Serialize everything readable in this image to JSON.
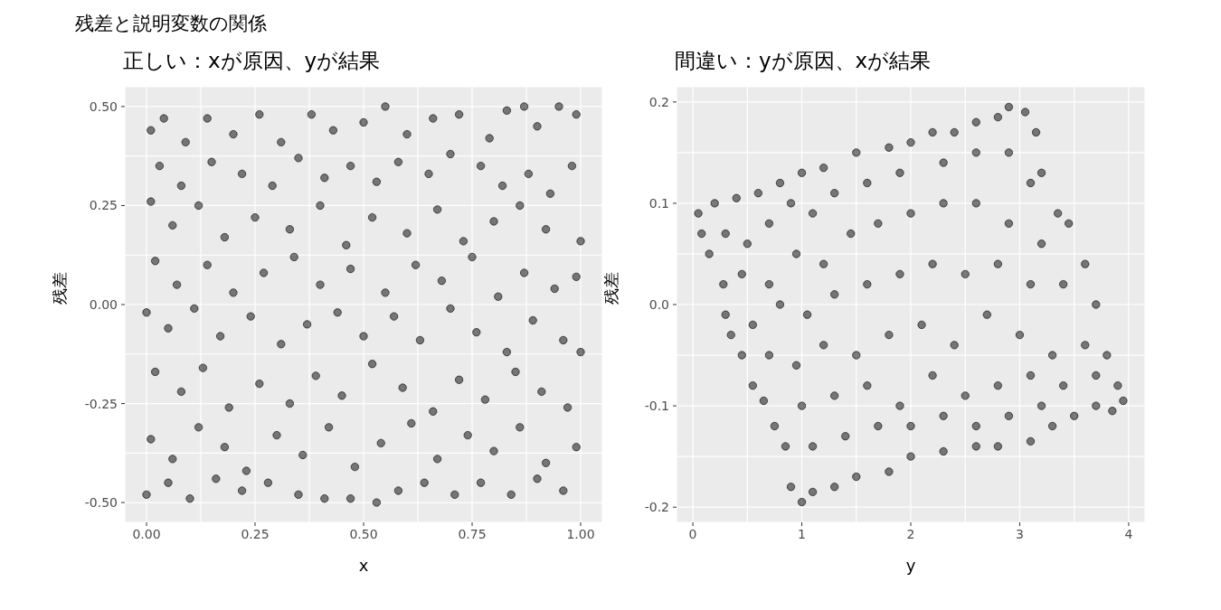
{
  "chart_data": [
    {
      "type": "scatter",
      "title": "残差と説明変数の関係",
      "subtitle": "正しい：xが原因、yが結果",
      "xlabel": "x",
      "ylabel": "残差",
      "marker": "circle",
      "grid": true,
      "xlim": [
        -0.05,
        1.05
      ],
      "ylim": [
        -0.55,
        0.55
      ],
      "xticks": [
        {
          "value": 0,
          "label": "0.00"
        },
        {
          "value": 0.125,
          "label": null
        },
        {
          "value": 0.25,
          "label": "0.25"
        },
        {
          "value": 0.375,
          "label": null
        },
        {
          "value": 0.5,
          "label": "0.50"
        },
        {
          "value": 0.625,
          "label": null
        },
        {
          "value": 0.75,
          "label": "0.75"
        },
        {
          "value": 0.875,
          "label": null
        },
        {
          "value": 1,
          "label": "1.00"
        }
      ],
      "yticks": [
        {
          "value": -0.5,
          "label": "-0.50"
        },
        {
          "value": -0.375,
          "label": null
        },
        {
          "value": -0.25,
          "label": "-0.25"
        },
        {
          "value": -0.125,
          "label": null
        },
        {
          "value": 0,
          "label": "0.00"
        },
        {
          "value": 0.125,
          "label": null
        },
        {
          "value": 0.25,
          "label": "0.25"
        },
        {
          "value": 0.375,
          "label": null
        },
        {
          "value": 0.5,
          "label": "0.50"
        }
      ],
      "series": [
        {
          "color": "#000000",
          "x": [
            0.01,
            0.04,
            0.09,
            0.14,
            0.2,
            0.26,
            0.31,
            0.38,
            0.43,
            0.5,
            0.55,
            0.6,
            0.66,
            0.72,
            0.79,
            0.83,
            0.87,
            0.9,
            0.95,
            0.99,
            0.03,
            0.08,
            0.15,
            0.22,
            0.29,
            0.35,
            0.41,
            0.47,
            0.53,
            0.58,
            0.65,
            0.7,
            0.77,
            0.82,
            0.88,
            0.93,
            0.98,
            0.01,
            0.06,
            0.12,
            0.18,
            0.25,
            0.33,
            0.4,
            0.46,
            0.52,
            0.6,
            0.67,
            0.73,
            0.8,
            0.86,
            0.92,
            1.0,
            0.02,
            0.07,
            0.14,
            0.2,
            0.27,
            0.34,
            0.4,
            0.47,
            0.55,
            0.62,
            0.68,
            0.75,
            0.81,
            0.87,
            0.94,
            0.99,
            0.0,
            0.05,
            0.11,
            0.17,
            0.24,
            0.31,
            0.37,
            0.44,
            0.5,
            0.57,
            0.63,
            0.7,
            0.76,
            0.83,
            0.89,
            0.96,
            1.0,
            0.02,
            0.08,
            0.13,
            0.19,
            0.26,
            0.33,
            0.39,
            0.45,
            0.52,
            0.59,
            0.66,
            0.72,
            0.78,
            0.85,
            0.91,
            0.97,
            0.01,
            0.06,
            0.12,
            0.18,
            0.23,
            0.3,
            0.36,
            0.42,
            0.48,
            0.54,
            0.61,
            0.67,
            0.74,
            0.8,
            0.86,
            0.92,
            0.99,
            0.0,
            0.05,
            0.1,
            0.16,
            0.22,
            0.28,
            0.35,
            0.41,
            0.47,
            0.53,
            0.58,
            0.64,
            0.71,
            0.77,
            0.84,
            0.9,
            0.96
          ],
          "values": [
            0.44,
            0.47,
            0.41,
            0.47,
            0.43,
            0.48,
            0.41,
            0.48,
            0.44,
            0.46,
            0.5,
            0.43,
            0.47,
            0.48,
            0.42,
            0.49,
            0.5,
            0.45,
            0.5,
            0.48,
            0.35,
            0.3,
            0.36,
            0.33,
            0.3,
            0.37,
            0.32,
            0.35,
            0.31,
            0.36,
            0.33,
            0.38,
            0.35,
            0.3,
            0.33,
            0.28,
            0.35,
            0.26,
            0.2,
            0.25,
            0.17,
            0.22,
            0.19,
            0.25,
            0.15,
            0.22,
            0.18,
            0.24,
            0.16,
            0.21,
            0.25,
            0.19,
            0.16,
            0.11,
            0.05,
            0.1,
            0.03,
            0.08,
            0.12,
            0.05,
            0.09,
            0.03,
            0.1,
            0.06,
            0.12,
            0.02,
            0.08,
            0.04,
            0.07,
            -0.02,
            -0.06,
            -0.01,
            -0.08,
            -0.03,
            -0.1,
            -0.05,
            -0.02,
            -0.08,
            -0.03,
            -0.09,
            -0.01,
            -0.07,
            -0.12,
            -0.04,
            -0.09,
            -0.12,
            -0.17,
            -0.22,
            -0.16,
            -0.26,
            -0.2,
            -0.25,
            -0.18,
            -0.23,
            -0.15,
            -0.21,
            -0.27,
            -0.19,
            -0.24,
            -0.17,
            -0.22,
            -0.26,
            -0.34,
            -0.39,
            -0.31,
            -0.36,
            -0.42,
            -0.33,
            -0.38,
            -0.31,
            -0.41,
            -0.35,
            -0.3,
            -0.39,
            -0.33,
            -0.37,
            -0.31,
            -0.4,
            -0.36,
            -0.48,
            -0.45,
            -0.49,
            -0.44,
            -0.47,
            -0.45,
            -0.48,
            -0.49,
            -0.49,
            -0.5,
            -0.47,
            -0.45,
            -0.48,
            -0.45,
            -0.48,
            -0.44,
            -0.47
          ]
        }
      ]
    },
    {
      "type": "scatter",
      "subtitle": "間違い：yが原因、xが結果",
      "xlabel": "y",
      "ylabel": "残差",
      "marker": "circle",
      "grid": true,
      "xlim": [
        -0.15,
        4.15
      ],
      "ylim": [
        -0.215,
        0.215
      ],
      "xticks": [
        0,
        {
          "value": 0.5,
          "label": null
        },
        1,
        {
          "value": 1.5,
          "label": null
        },
        2,
        {
          "value": 2.5,
          "label": null
        },
        3,
        {
          "value": 3.5,
          "label": null
        },
        4
      ],
      "yticks": [
        -0.2,
        {
          "value": -0.15,
          "label": null
        },
        -0.1,
        {
          "value": -0.05,
          "label": null
        },
        {
          "value": 0,
          "label": "0.0"
        },
        {
          "value": 0.05,
          "label": null
        },
        0.1,
        {
          "value": 0.15,
          "label": null
        },
        0.2
      ],
      "series": [
        {
          "color": "#000000",
          "x": [
            0.05,
            0.2,
            0.4,
            0.6,
            0.8,
            1.0,
            1.2,
            1.5,
            1.8,
            2.0,
            2.2,
            2.4,
            2.6,
            2.8,
            2.9,
            3.05,
            3.15,
            3.2,
            3.35,
            3.45,
            3.6,
            3.7,
            3.8,
            3.9,
            3.95,
            3.85,
            3.7,
            3.5,
            3.3,
            3.1,
            2.8,
            2.6,
            2.3,
            2.0,
            1.8,
            1.5,
            1.3,
            1.1,
            1.0,
            0.9,
            0.85,
            0.75,
            0.65,
            0.55,
            0.45,
            0.35,
            0.3,
            0.28,
            0.15,
            0.08,
            0.3,
            0.5,
            0.7,
            0.9,
            1.1,
            1.3,
            1.6,
            1.9,
            2.3,
            2.6,
            2.9,
            3.1,
            0.45,
            0.7,
            0.95,
            1.2,
            1.45,
            1.7,
            2.0,
            2.3,
            2.6,
            2.9,
            3.2,
            0.55,
            0.8,
            1.05,
            1.3,
            1.6,
            1.9,
            2.2,
            2.5,
            2.8,
            3.1,
            3.4,
            0.7,
            0.95,
            1.2,
            1.5,
            1.8,
            2.1,
            2.4,
            2.7,
            3.0,
            3.3,
            3.6,
            1.0,
            1.3,
            1.6,
            1.9,
            2.2,
            2.5,
            2.8,
            3.1,
            3.4,
            3.7,
            1.1,
            1.4,
            1.7,
            2.0,
            2.3,
            2.6,
            2.9,
            3.2
          ],
          "values": [
            0.09,
            0.1,
            0.105,
            0.11,
            0.12,
            0.13,
            0.135,
            0.15,
            0.155,
            0.16,
            0.17,
            0.17,
            0.18,
            0.185,
            0.195,
            0.19,
            0.17,
            0.13,
            0.09,
            0.08,
            0.04,
            0.0,
            -0.05,
            -0.08,
            -0.095,
            -0.105,
            -0.1,
            -0.11,
            -0.12,
            -0.135,
            -0.14,
            -0.14,
            -0.145,
            -0.15,
            -0.165,
            -0.17,
            -0.18,
            -0.185,
            -0.195,
            -0.18,
            -0.14,
            -0.12,
            -0.095,
            -0.08,
            -0.05,
            -0.03,
            -0.01,
            0.02,
            0.05,
            0.07,
            0.07,
            0.06,
            0.08,
            0.1,
            0.09,
            0.11,
            0.12,
            0.13,
            0.14,
            0.15,
            0.15,
            0.12,
            0.03,
            0.02,
            0.05,
            0.04,
            0.07,
            0.08,
            0.09,
            0.1,
            0.1,
            0.08,
            0.06,
            -0.02,
            0.0,
            -0.01,
            0.01,
            0.02,
            0.03,
            0.04,
            0.03,
            0.04,
            0.02,
            0.02,
            -0.05,
            -0.06,
            -0.04,
            -0.05,
            -0.03,
            -0.02,
            -0.04,
            -0.01,
            -0.03,
            -0.05,
            -0.04,
            -0.1,
            -0.09,
            -0.08,
            -0.1,
            -0.07,
            -0.09,
            -0.08,
            -0.07,
            -0.08,
            -0.07,
            -0.14,
            -0.13,
            -0.12,
            -0.12,
            -0.11,
            -0.12,
            -0.11,
            -0.1
          ]
        }
      ]
    }
  ]
}
